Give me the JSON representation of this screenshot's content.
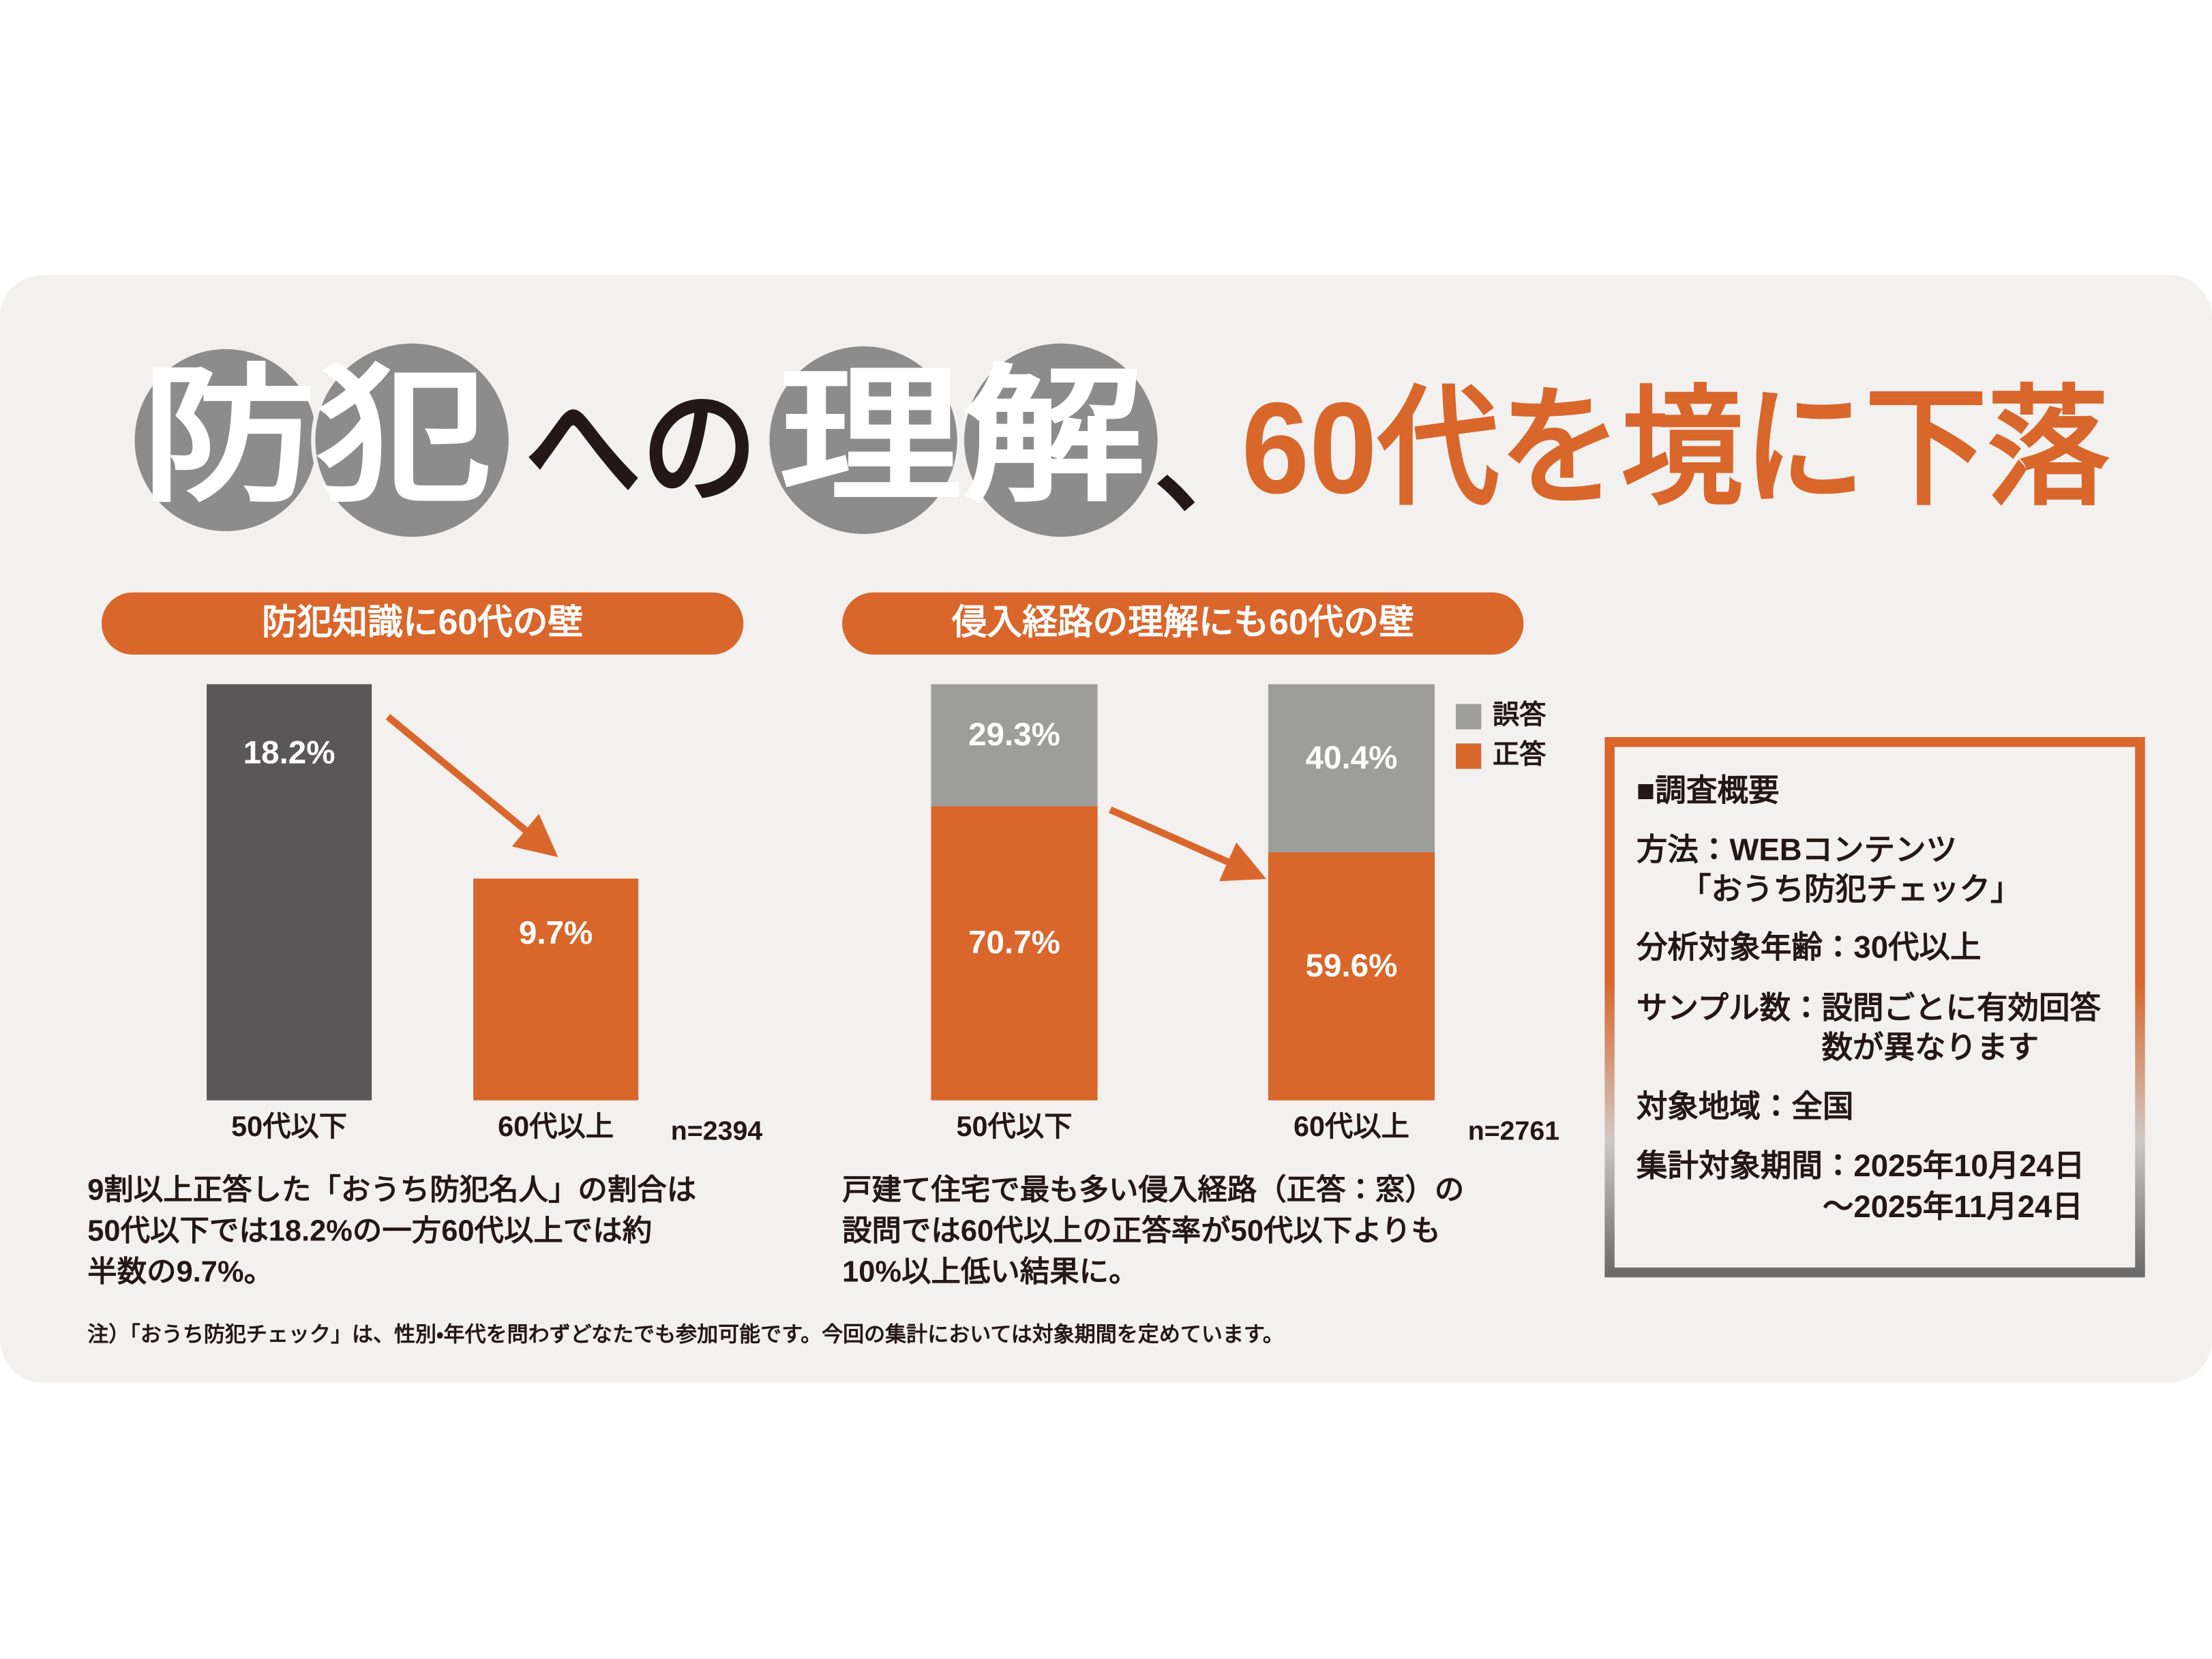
{
  "title_parts": [
    "防犯",
    "への",
    "理解",
    "、",
    "60代を境に下落"
  ],
  "chart_data": [
    {
      "type": "bar",
      "title": "防犯知識に60代の壁",
      "categories": [
        "50代以下",
        "60代以上"
      ],
      "values": [
        18.2,
        9.7
      ],
      "value_labels": [
        "18.2%",
        "9.7%"
      ],
      "colors": [
        "#595757",
        "#d9662b"
      ],
      "sample_label": "n=2394",
      "caption": [
        "9割以上正答した「おうち防犯名人」の割合は",
        "50代以下では18.2%の一方60代以上では約",
        "半数の9.7%。"
      ]
    },
    {
      "type": "stacked_bar",
      "title": "侵入経路の理解にも60代の壁",
      "categories": [
        "50代以下",
        "60代以上"
      ],
      "series": [
        {
          "name": "正答",
          "color": "#d9662b",
          "values": [
            70.7,
            59.6
          ],
          "value_labels": [
            "70.7%",
            "59.6%"
          ]
        },
        {
          "name": "誤答",
          "color": "#9d9d9c",
          "values": [
            29.3,
            40.4
          ],
          "value_labels": [
            "29.3%",
            "40.4%"
          ]
        }
      ],
      "sample_label": "n=2761",
      "caption": [
        "戸建て住宅で最も多い侵入経路（正答：窓）の",
        "設問では60代以上の正答率が50代以下よりも",
        "10%以上低い結果に。"
      ]
    }
  ],
  "summary": {
    "title": "■調査概要",
    "items": [
      {
        "label": "方法：",
        "lines": [
          "WEBコンテンツ",
          "「おうち防犯チェック」"
        ]
      },
      {
        "label": "分析対象年齢：",
        "lines": [
          "30代以上"
        ]
      },
      {
        "label": "サンプル数：",
        "lines": [
          "設問ごとに有効回答",
          "数が異なります"
        ]
      },
      {
        "label": "対象地域：",
        "lines": [
          "全国"
        ]
      },
      {
        "label": "集計対象期間：",
        "lines": [
          "2025年10月24日",
          "～2025年11月24日"
        ]
      }
    ]
  },
  "note": "注）「おうち防犯チェック」は、性別・年代を問わずどなたでも参加可能です。今回の集計においては対象期間を定めています。"
}
